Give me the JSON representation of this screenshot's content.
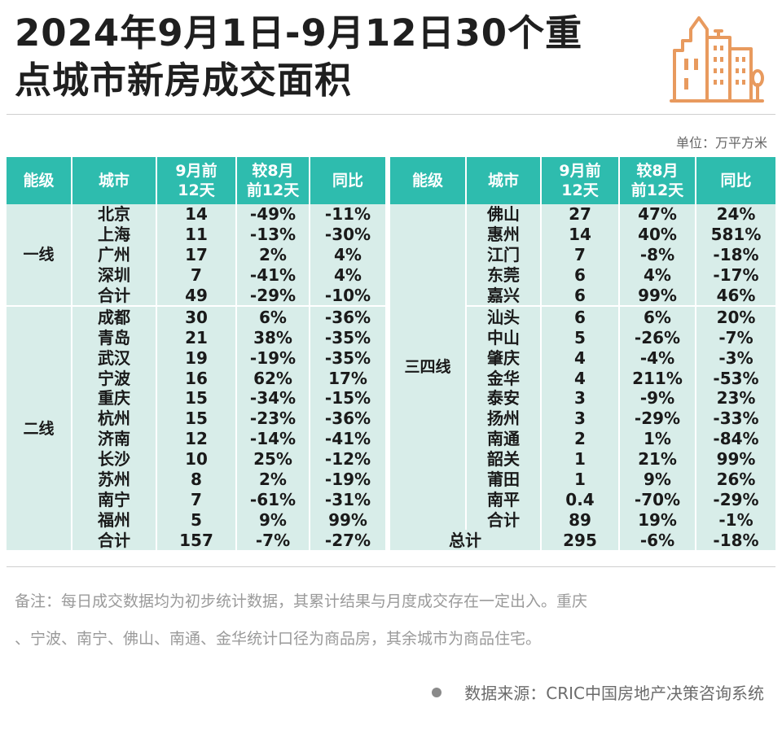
{
  "title": {
    "line1": "2024年9月1日-9月12日30个重",
    "line2": "点城市新房成交面积"
  },
  "icons": {
    "logo": "city-buildings-icon",
    "source_bullet": "dot-icon"
  },
  "colors": {
    "header": "#2ebcae",
    "row": "#d8ede9",
    "logo": "#e89a5e"
  },
  "unit": "单位：万平方米",
  "chart_data": {
    "type": "table",
    "columns": [
      {
        "h1": "能级",
        "h2": ""
      },
      {
        "h1": "城市",
        "h2": ""
      },
      {
        "h1": "9月前",
        "h2": "12天"
      },
      {
        "h1": "较8月",
        "h2": "前12天"
      },
      {
        "h1": "同比",
        "h2": ""
      },
      {
        "h1": "能级",
        "h2": ""
      },
      {
        "h1": "城市",
        "h2": ""
      },
      {
        "h1": "9月前",
        "h2": "12天"
      },
      {
        "h1": "较8月",
        "h2": "前12天"
      },
      {
        "h1": "同比",
        "h2": ""
      }
    ],
    "left_groups": [
      {
        "tier": "一线",
        "rows": [
          [
            "北京",
            "14",
            "-49%",
            "-11%"
          ],
          [
            "上海",
            "11",
            "-13%",
            "-30%"
          ],
          [
            "广州",
            "17",
            "2%",
            "4%"
          ],
          [
            "深圳",
            "7",
            "-41%",
            "4%"
          ],
          [
            "合计",
            "49",
            "-29%",
            "-10%"
          ]
        ]
      },
      {
        "tier": "二线",
        "rows": [
          [
            "成都",
            "30",
            "6%",
            "-36%"
          ],
          [
            "青岛",
            "21",
            "38%",
            "-35%"
          ],
          [
            "武汉",
            "19",
            "-19%",
            "-35%"
          ],
          [
            "宁波",
            "16",
            "62%",
            "17%"
          ],
          [
            "重庆",
            "15",
            "-34%",
            "-15%"
          ],
          [
            "杭州",
            "15",
            "-23%",
            "-36%"
          ],
          [
            "济南",
            "12",
            "-14%",
            "-41%"
          ],
          [
            "长沙",
            "10",
            "25%",
            "-12%"
          ],
          [
            "苏州",
            "8",
            "2%",
            "-19%"
          ],
          [
            "南宁",
            "7",
            "-61%",
            "-31%"
          ],
          [
            "福州",
            "5",
            "9%",
            "99%"
          ],
          [
            "合计",
            "157",
            "-7%",
            "-27%"
          ]
        ]
      }
    ],
    "right_group": {
      "tier": "三四线",
      "rows": [
        [
          "佛山",
          "27",
          "47%",
          "24%"
        ],
        [
          "惠州",
          "14",
          "40%",
          "581%"
        ],
        [
          "江门",
          "7",
          "-8%",
          "-18%"
        ],
        [
          "东莞",
          "6",
          "4%",
          "-17%"
        ],
        [
          "嘉兴",
          "6",
          "99%",
          "46%"
        ],
        [
          "汕头",
          "6",
          "6%",
          "20%"
        ],
        [
          "中山",
          "5",
          "-26%",
          "-7%"
        ],
        [
          "肇庆",
          "4",
          "-4%",
          "-3%"
        ],
        [
          "金华",
          "4",
          "211%",
          "-53%"
        ],
        [
          "泰安",
          "3",
          "-9%",
          "23%"
        ],
        [
          "扬州",
          "3",
          "-29%",
          "-33%"
        ],
        [
          "南通",
          "2",
          "1%",
          "-84%"
        ],
        [
          "韶关",
          "1",
          "21%",
          "99%"
        ],
        [
          "莆田",
          "1",
          "9%",
          "26%"
        ],
        [
          "南平",
          "0.4",
          "-70%",
          "-29%"
        ],
        [
          "合计",
          "89",
          "19%",
          "-1%"
        ]
      ]
    },
    "total": [
      "总计",
      "295",
      "-6%",
      "-18%"
    ]
  },
  "note": {
    "line1": "备注：每日成交数据均为初步统计数据，其累计结果与月度成交存在一定出入。重庆",
    "line2": "、宁波、南宁、佛山、南通、金华统计口径为商品房，其余城市为商品住宅。"
  },
  "source": "数据来源：CRIC中国房地产决策咨询系统"
}
